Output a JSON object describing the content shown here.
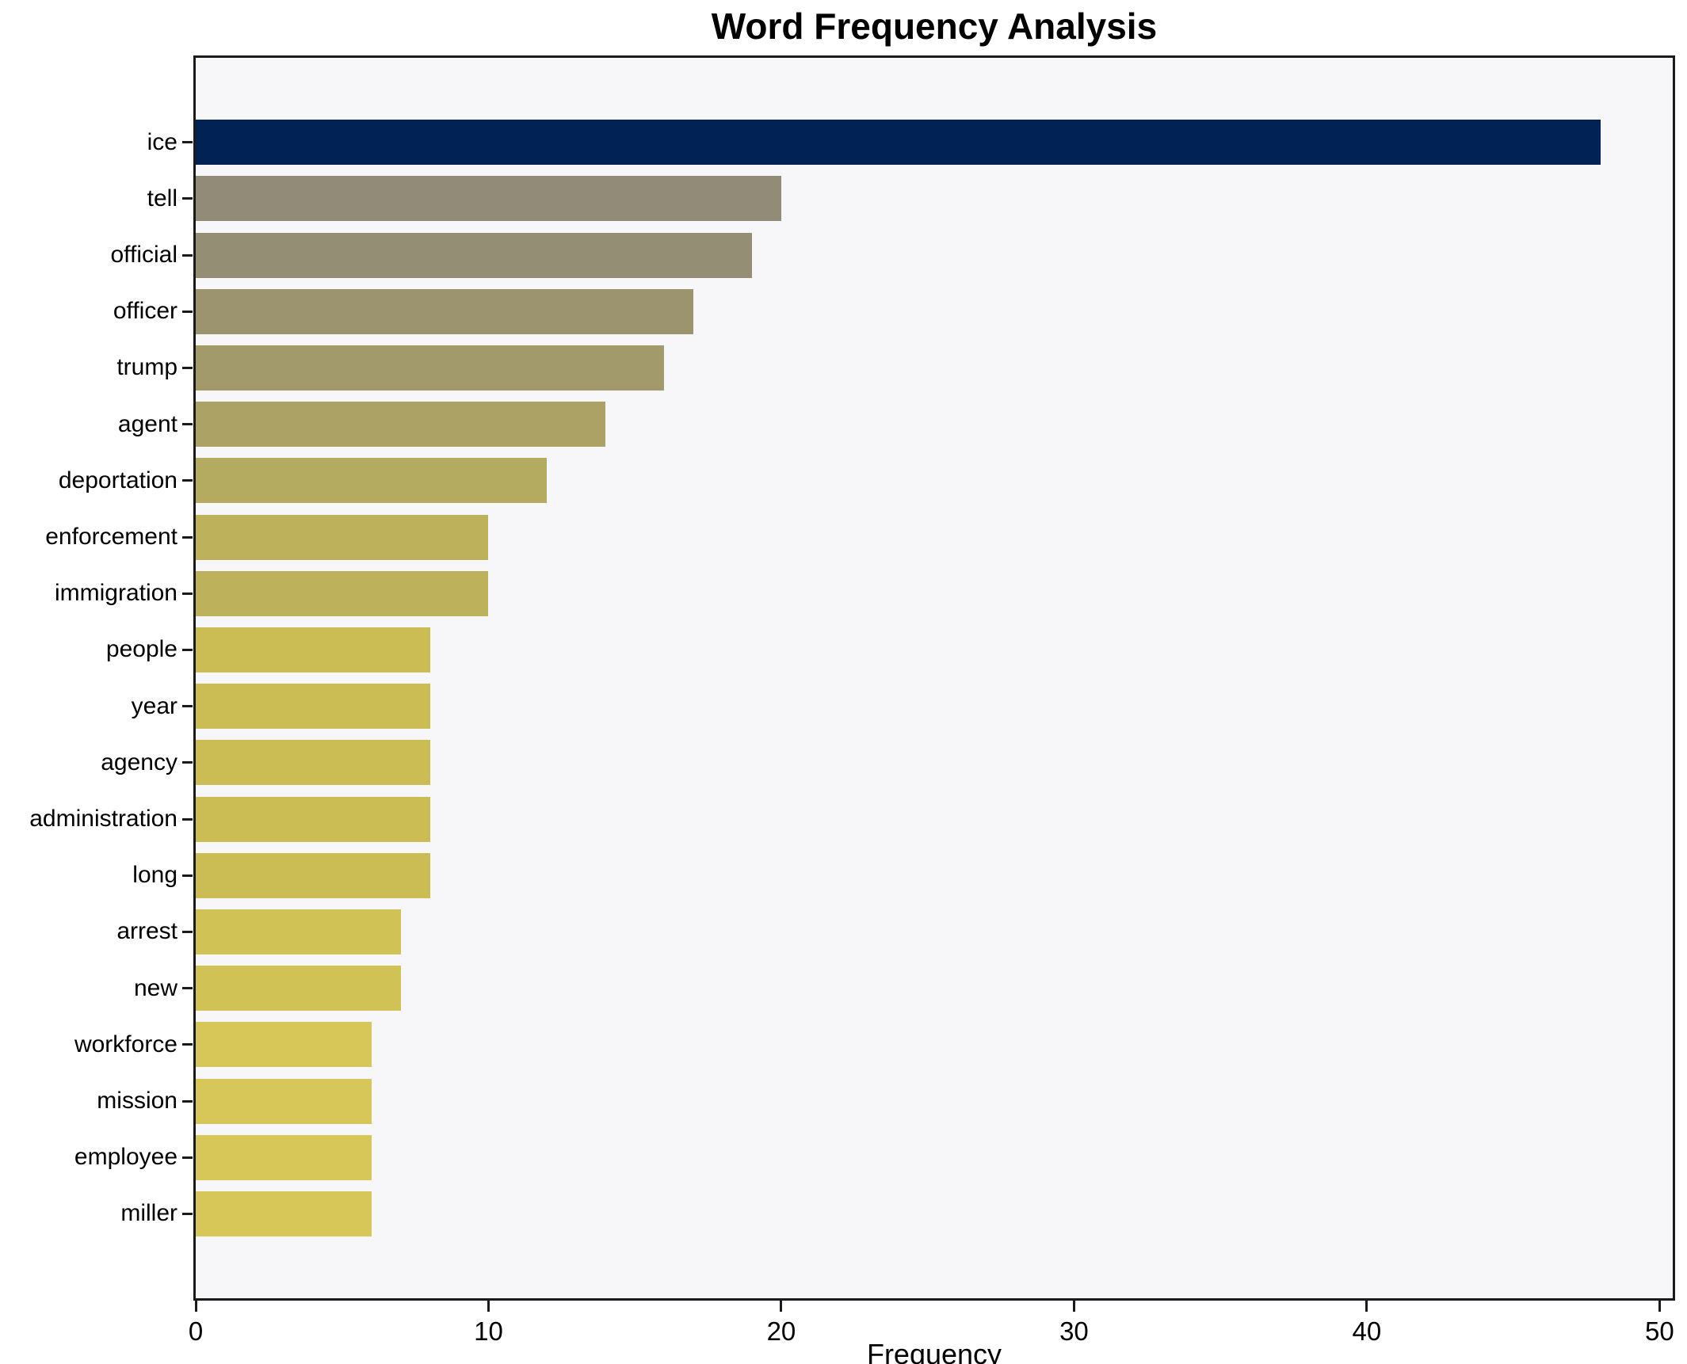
{
  "chart_data": {
    "type": "bar",
    "orientation": "horizontal",
    "title": "Word Frequency Analysis",
    "xlabel": "Frequency",
    "ylabel": "",
    "xlim": [
      0,
      50.45
    ],
    "xticks": [
      0,
      10,
      20,
      30,
      40,
      50
    ],
    "grid": false,
    "legend_position": "none",
    "categories": [
      "ice",
      "tell",
      "official",
      "officer",
      "trump",
      "agent",
      "deportation",
      "enforcement",
      "immigration",
      "people",
      "year",
      "agency",
      "administration",
      "long",
      "arrest",
      "new",
      "workforce",
      "mission",
      "employee",
      "miller"
    ],
    "values": [
      48,
      20,
      19,
      17,
      16,
      14,
      12,
      10,
      10,
      8,
      8,
      8,
      8,
      8,
      7,
      7,
      6,
      6,
      6,
      6
    ],
    "bar_colors": [
      "#002255",
      "#928b78",
      "#948e75",
      "#9c946f",
      "#a39a6b",
      "#ada266",
      "#b4aa60",
      "#bdb15b",
      "#bdb15b",
      "#cbbc54",
      "#cbbc54",
      "#cbbc54",
      "#cbbc54",
      "#cbbc54",
      "#d1c256",
      "#d1c256",
      "#d6c758",
      "#d6c758",
      "#d6c758",
      "#d6c758"
    ],
    "plot_background": "#f7f7f9",
    "figure_background": "#ffffff",
    "spine_color": "#1a1a1a",
    "text_color": "#000000"
  }
}
